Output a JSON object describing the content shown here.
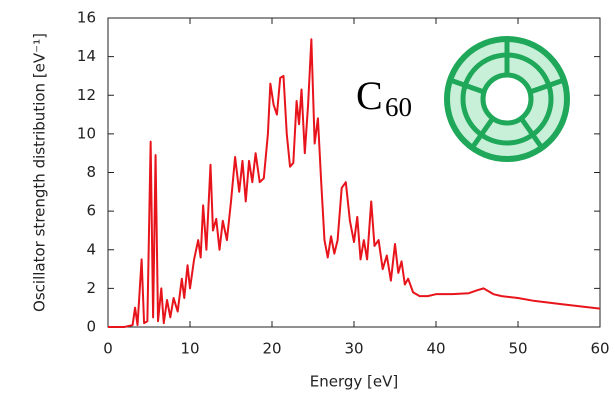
{
  "chart_data": {
    "type": "line",
    "xlabel": "Energy [eV]",
    "ylabel": "Oscillator strength distribution [eV⁻¹]",
    "annotation": {
      "text": "C",
      "subscript": "60"
    },
    "xlim": [
      0,
      60
    ],
    "ylim": [
      0,
      16
    ],
    "xticks": [
      0,
      10,
      20,
      30,
      40,
      50,
      60
    ],
    "yticks": [
      0,
      2,
      4,
      6,
      8,
      10,
      12,
      14,
      16
    ],
    "series": [
      {
        "color": "#e8141c",
        "x": [
          0,
          2,
          3,
          3.3,
          3.6,
          4.1,
          4.4,
          4.8,
          5.2,
          5.5,
          5.8,
          6.1,
          6.5,
          6.8,
          7.2,
          7.6,
          8,
          8.5,
          9,
          9.3,
          9.7,
          10,
          10.5,
          11,
          11.3,
          11.6,
          12,
          12.5,
          12.8,
          13.2,
          13.6,
          14,
          14.5,
          15,
          15.5,
          16,
          16.4,
          16.8,
          17.2,
          17.6,
          18,
          18.5,
          19,
          19.5,
          19.8,
          20.2,
          20.6,
          21,
          21.4,
          21.8,
          22.2,
          22.6,
          23,
          23.3,
          23.6,
          24,
          24.4,
          24.8,
          25.2,
          25.6,
          26,
          26.4,
          26.8,
          27.2,
          27.6,
          28,
          28.5,
          29,
          29.5,
          30,
          30.4,
          30.8,
          31.2,
          31.6,
          32.1,
          32.5,
          33,
          33.5,
          34,
          34.5,
          35,
          35.4,
          35.8,
          36.2,
          36.6,
          37.2,
          38,
          39,
          40,
          42,
          44,
          45,
          45.8,
          47,
          48,
          50,
          52,
          55,
          58,
          60
        ],
        "values": [
          0,
          0,
          0.1,
          1.0,
          0.1,
          3.5,
          0.2,
          0.3,
          9.6,
          0.5,
          8.9,
          0.3,
          2,
          0.2,
          1.4,
          0.5,
          1.5,
          0.8,
          2.5,
          1.5,
          3.2,
          2,
          3.5,
          4.5,
          3.6,
          6.3,
          4,
          8.4,
          5,
          5.6,
          4,
          5.5,
          4.5,
          6.5,
          8.8,
          7,
          8.6,
          6.5,
          8.6,
          7.5,
          9,
          7.5,
          7.7,
          10,
          12.6,
          11.5,
          11,
          12.9,
          13.0,
          10,
          8.3,
          8.5,
          11.7,
          10.5,
          12.3,
          9,
          11.5,
          14.9,
          9.5,
          10.8,
          7.5,
          4.5,
          3.6,
          4.7,
          3.8,
          4.5,
          7.2,
          7.5,
          5.5,
          4.4,
          5.7,
          3.5,
          4.5,
          3.5,
          6.5,
          4.2,
          4.5,
          3,
          3.7,
          2.4,
          4.3,
          2.8,
          3.4,
          2.2,
          2.5,
          1.8,
          1.6,
          1.6,
          1.7,
          1.7,
          1.75,
          1.9,
          2.0,
          1.7,
          1.6,
          1.5,
          1.35,
          1.2,
          1.05,
          0.95
        ]
      }
    ]
  }
}
